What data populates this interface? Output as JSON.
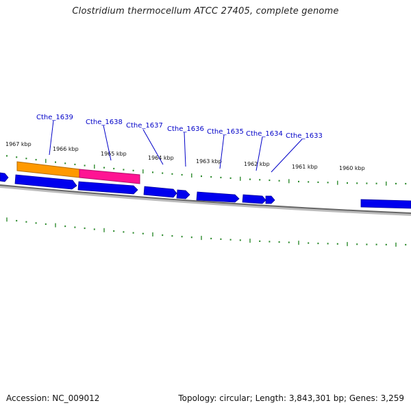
{
  "title": "Clostridium thermocellum ATCC 27405, complete genome",
  "footer": {
    "accession_label": "Accession:",
    "accession": "NC_009012",
    "topology_label": "Topology:",
    "topology": "circular",
    "length_label": "Length:",
    "length": "3,843,301 bp",
    "genes_label": "Genes:",
    "genes": "3,259"
  },
  "colors": {
    "gene": "#0000ee",
    "tick": "#2e8b2e",
    "backbone": "#777777",
    "label": "#0000c8",
    "highlight_orange": "#ff9900",
    "highlight_pink": "#ff1493"
  },
  "kbp_markers": [
    "1967 kbp",
    "1966 kbp",
    "1965 kbp",
    "1964 kbp",
    "1963 kbp",
    "1962 kbp",
    "1961 kbp",
    "1960 kbp"
  ],
  "genes": [
    {
      "id": "Cthe_1639"
    },
    {
      "id": "Cthe_1638"
    },
    {
      "id": "Cthe_1637"
    },
    {
      "id": "Cthe_1636"
    },
    {
      "id": "Cthe_1635"
    },
    {
      "id": "Cthe_1634"
    },
    {
      "id": "Cthe_1633"
    }
  ]
}
